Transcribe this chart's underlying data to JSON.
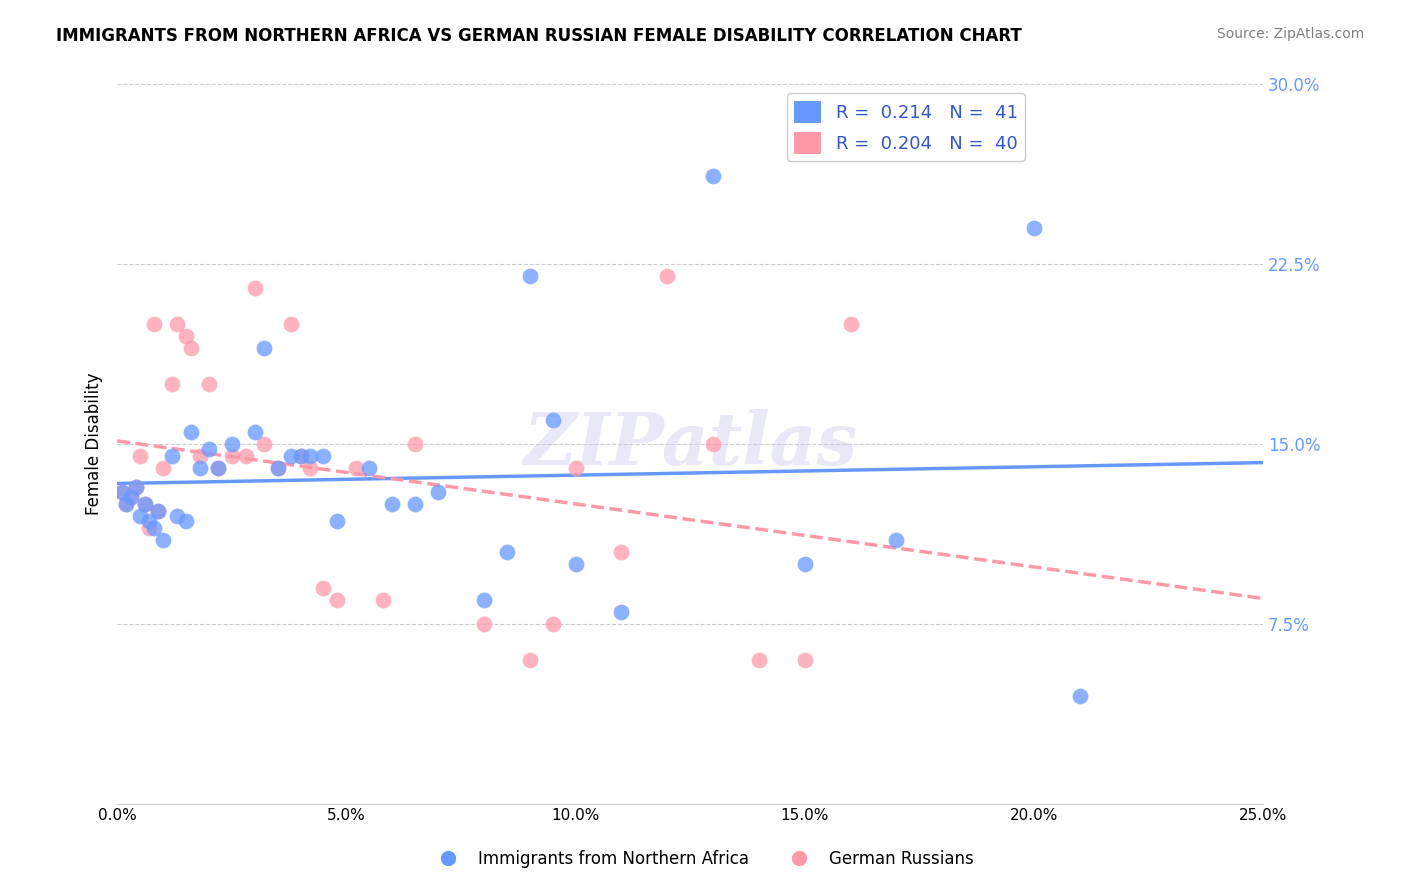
{
  "title": "IMMIGRANTS FROM NORTHERN AFRICA VS GERMAN RUSSIAN FEMALE DISABILITY CORRELATION CHART",
  "source": "Source: ZipAtlas.com",
  "ylabel": "Female Disability",
  "xlim": [
    0.0,
    0.25
  ],
  "ylim": [
    0.0,
    0.3
  ],
  "xtick_labels": [
    "0.0%",
    "5.0%",
    "10.0%",
    "15.0%",
    "20.0%",
    "25.0%"
  ],
  "xtick_vals": [
    0.0,
    0.05,
    0.1,
    0.15,
    0.2,
    0.25
  ],
  "ytick_labels": [
    "7.5%",
    "15.0%",
    "22.5%",
    "30.0%"
  ],
  "ytick_vals": [
    0.075,
    0.15,
    0.225,
    0.3
  ],
  "watermark": "ZIPatlas",
  "blue_color": "#6699FF",
  "pink_color": "#FF99AA",
  "series1_name": "Immigrants from Northern Africa",
  "series2_name": "German Russians",
  "blue_x": [
    0.001,
    0.002,
    0.003,
    0.004,
    0.005,
    0.006,
    0.007,
    0.008,
    0.009,
    0.01,
    0.012,
    0.013,
    0.015,
    0.016,
    0.018,
    0.02,
    0.022,
    0.025,
    0.03,
    0.032,
    0.035,
    0.038,
    0.04,
    0.042,
    0.045,
    0.048,
    0.055,
    0.06,
    0.065,
    0.07,
    0.08,
    0.085,
    0.09,
    0.095,
    0.1,
    0.11,
    0.13,
    0.15,
    0.17,
    0.2,
    0.21
  ],
  "blue_y": [
    0.13,
    0.125,
    0.128,
    0.132,
    0.12,
    0.125,
    0.118,
    0.115,
    0.122,
    0.11,
    0.145,
    0.12,
    0.118,
    0.155,
    0.14,
    0.148,
    0.14,
    0.15,
    0.155,
    0.19,
    0.14,
    0.145,
    0.145,
    0.145,
    0.145,
    0.118,
    0.14,
    0.125,
    0.125,
    0.13,
    0.085,
    0.105,
    0.22,
    0.16,
    0.1,
    0.08,
    0.262,
    0.1,
    0.11,
    0.24,
    0.045
  ],
  "pink_x": [
    0.001,
    0.002,
    0.003,
    0.004,
    0.005,
    0.006,
    0.007,
    0.008,
    0.009,
    0.01,
    0.012,
    0.013,
    0.015,
    0.016,
    0.018,
    0.02,
    0.022,
    0.025,
    0.028,
    0.03,
    0.032,
    0.035,
    0.038,
    0.04,
    0.042,
    0.045,
    0.048,
    0.052,
    0.058,
    0.065,
    0.08,
    0.09,
    0.095,
    0.1,
    0.11,
    0.12,
    0.13,
    0.14,
    0.15,
    0.16
  ],
  "pink_y": [
    0.13,
    0.125,
    0.128,
    0.132,
    0.145,
    0.125,
    0.115,
    0.2,
    0.122,
    0.14,
    0.175,
    0.2,
    0.195,
    0.19,
    0.145,
    0.175,
    0.14,
    0.145,
    0.145,
    0.215,
    0.15,
    0.14,
    0.2,
    0.145,
    0.14,
    0.09,
    0.085,
    0.14,
    0.085,
    0.15,
    0.075,
    0.06,
    0.075,
    0.14,
    0.105,
    0.22,
    0.15,
    0.06,
    0.06,
    0.2
  ]
}
